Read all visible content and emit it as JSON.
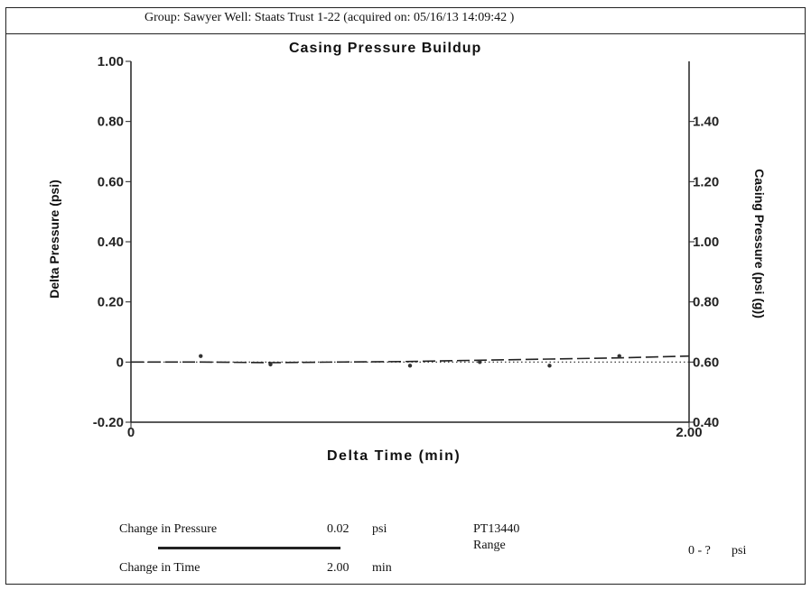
{
  "header": {
    "text": "Group: Sawyer     Well: Staats Trust 1-22 (acquired on: 05/16/13 14:09:42 )"
  },
  "chart_data": {
    "type": "line",
    "title": "Casing Pressure Buildup",
    "xlabel": "Delta Time (min)",
    "ylabel": "Delta Pressure (psi)",
    "y2label": "Casing Pressure (psi (g))",
    "xlim": [
      0,
      2.0
    ],
    "ylim": [
      -0.2,
      1.0
    ],
    "y2lim": [
      0.4,
      1.6
    ],
    "x_ticks": [
      "0",
      "2.00"
    ],
    "y_ticks": [
      "-0.20",
      "0",
      "0.20",
      "0.40",
      "0.60",
      "0.80",
      "1.00"
    ],
    "y2_ticks": [
      "0.40",
      "0.60",
      "0.80",
      "1.00",
      "1.20",
      "1.40"
    ],
    "grid": false,
    "series": [
      {
        "style": "dashed",
        "axis": "left",
        "x": [
          0,
          0.25,
          0.5,
          0.75,
          1.0,
          1.25,
          1.5,
          1.75,
          2.0
        ],
        "y": [
          0,
          0.0,
          -0.002,
          0.0,
          0.002,
          0.006,
          0.01,
          0.014,
          0.02
        ]
      },
      {
        "style": "dotted",
        "axis": "left",
        "x": [
          0,
          2.0
        ],
        "y": [
          0,
          0
        ]
      },
      {
        "style": "points",
        "axis": "left",
        "x": [
          0.25,
          0.5,
          1.0,
          1.25,
          1.5,
          1.75
        ],
        "y": [
          0.02,
          -0.008,
          -0.012,
          0.0,
          -0.012,
          0.02
        ]
      }
    ]
  },
  "footer": {
    "change_pressure_label": "Change in Pressure",
    "change_pressure_value": "0.02",
    "change_pressure_unit": "psi",
    "change_time_label": "Change in Time",
    "change_time_value": "2.00",
    "change_time_unit": "min",
    "gauge_id": "PT13440",
    "range_label": "Range",
    "range_value": "0 - ?",
    "range_unit": "psi"
  }
}
